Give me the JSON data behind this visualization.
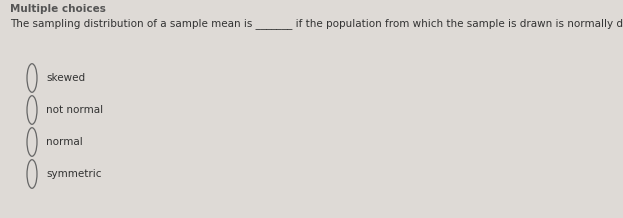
{
  "background_color": "#dedad6",
  "question_line1": "The sampling distribution of a sample mean is _______ if the population from which the sample is drawn is normally distributed.",
  "question_fontsize": 7.5,
  "options": [
    "skewed",
    "not normal",
    "normal",
    "symmetric"
  ],
  "option_fontsize": 7.5,
  "circle_color": "#666666",
  "text_color": "#333333",
  "header_partial": "Multiple choices",
  "header_color": "#555555",
  "header_fontsize": 7.5
}
